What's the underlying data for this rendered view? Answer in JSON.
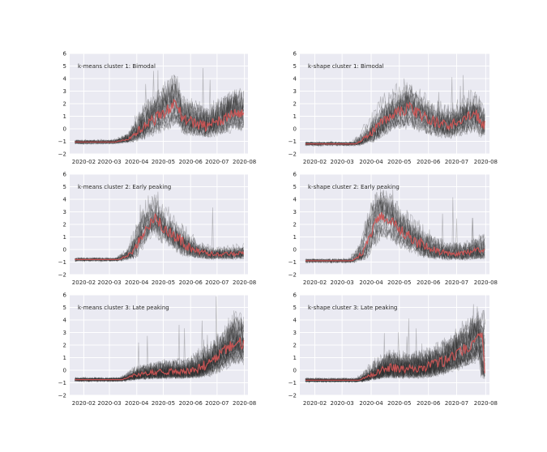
{
  "chart_data": [
    {
      "type": "line",
      "title": "k-means cluster 1: Bimodal",
      "x_ticks": [
        "2020-02",
        "2020-03",
        "2020-04",
        "2020-05",
        "2020-06",
        "2020-07",
        "2020-08"
      ],
      "y_ticks": [
        -2,
        -1,
        0,
        1,
        2,
        3,
        4,
        5,
        6
      ],
      "xlim": [
        "2020-01-16",
        "2020-08-05"
      ],
      "ylim": [
        -2,
        6
      ],
      "x_range": [
        "2020-01-22",
        "2020-07-31"
      ],
      "grid": true,
      "series": [
        {
          "role": "cluster-member",
          "color": "#303030",
          "count": 25
        },
        {
          "role": "cluster-mean",
          "color": "#d05555",
          "profile": [
            [
              0.0,
              -1.05
            ],
            [
              0.24,
              -1.05
            ],
            [
              0.32,
              -0.8
            ],
            [
              0.42,
              0.3
            ],
            [
              0.5,
              1.0
            ],
            [
              0.6,
              2.1
            ],
            [
              0.64,
              0.8
            ],
            [
              0.7,
              0.5
            ],
            [
              0.78,
              0.2
            ],
            [
              0.86,
              0.6
            ],
            [
              0.93,
              1.2
            ],
            [
              1.0,
              1.1
            ]
          ]
        }
      ]
    },
    {
      "type": "line",
      "title": "k-shape cluster 1: Bimodal",
      "x_ticks": [
        "2020-02",
        "2020-03",
        "2020-04",
        "2020-05",
        "2020-06",
        "2020-07",
        "2020-08"
      ],
      "y_ticks": [
        -2,
        -1,
        0,
        1,
        2,
        3,
        4,
        5,
        6
      ],
      "xlim": [
        "2020-01-16",
        "2020-08-05"
      ],
      "ylim": [
        -2,
        6
      ],
      "x_range": [
        "2020-01-22",
        "2020-07-31"
      ],
      "grid": true,
      "series": [
        {
          "role": "cluster-member",
          "color": "#303030",
          "count": 25
        },
        {
          "role": "cluster-mean",
          "color": "#d05555",
          "profile": [
            [
              0.0,
              -1.2
            ],
            [
              0.28,
              -1.2
            ],
            [
              0.36,
              -0.5
            ],
            [
              0.43,
              0.5
            ],
            [
              0.5,
              1.2
            ],
            [
              0.58,
              1.7
            ],
            [
              0.65,
              1.0
            ],
            [
              0.72,
              0.5
            ],
            [
              0.8,
              0.2
            ],
            [
              0.88,
              0.7
            ],
            [
              0.95,
              1.2
            ],
            [
              1.0,
              0.2
            ]
          ]
        }
      ]
    },
    {
      "type": "line",
      "title": "k-means cluster 2: Early peaking",
      "x_ticks": [
        "2020-02",
        "2020-03",
        "2020-04",
        "2020-05",
        "2020-06",
        "2020-07",
        "2020-08"
      ],
      "y_ticks": [
        -2,
        -1,
        0,
        1,
        2,
        3,
        4,
        5,
        6
      ],
      "xlim": [
        "2020-01-16",
        "2020-08-05"
      ],
      "ylim": [
        -2,
        6
      ],
      "x_range": [
        "2020-01-22",
        "2020-07-31"
      ],
      "grid": true,
      "series": [
        {
          "role": "cluster-member",
          "color": "#303030",
          "count": 20
        },
        {
          "role": "cluster-mean",
          "color": "#d05555",
          "profile": [
            [
              0.0,
              -0.8
            ],
            [
              0.26,
              -0.8
            ],
            [
              0.34,
              -0.3
            ],
            [
              0.42,
              1.8
            ],
            [
              0.48,
              2.6
            ],
            [
              0.52,
              1.8
            ],
            [
              0.58,
              1.2
            ],
            [
              0.66,
              0.3
            ],
            [
              0.74,
              -0.2
            ],
            [
              0.85,
              -0.4
            ],
            [
              1.0,
              -0.3
            ]
          ]
        }
      ]
    },
    {
      "type": "line",
      "title": "k-shape cluster 2: Early peaking",
      "x_ticks": [
        "2020-02",
        "2020-03",
        "2020-04",
        "2020-05",
        "2020-06",
        "2020-07",
        "2020-08"
      ],
      "y_ticks": [
        -2,
        -1,
        0,
        1,
        2,
        3,
        4,
        5,
        6
      ],
      "xlim": [
        "2020-01-16",
        "2020-08-05"
      ],
      "ylim": [
        -2,
        6
      ],
      "x_range": [
        "2020-01-22",
        "2020-07-31"
      ],
      "grid": true,
      "series": [
        {
          "role": "cluster-member",
          "color": "#303030",
          "count": 22
        },
        {
          "role": "cluster-mean",
          "color": "#d05555",
          "profile": [
            [
              0.0,
              -0.9
            ],
            [
              0.26,
              -0.9
            ],
            [
              0.32,
              -0.3
            ],
            [
              0.37,
              1.5
            ],
            [
              0.42,
              2.7
            ],
            [
              0.47,
              2.4
            ],
            [
              0.53,
              1.5
            ],
            [
              0.6,
              0.8
            ],
            [
              0.68,
              0.1
            ],
            [
              0.78,
              -0.3
            ],
            [
              0.9,
              -0.3
            ],
            [
              1.0,
              0.0
            ]
          ]
        }
      ]
    },
    {
      "type": "line",
      "title": "k-means cluster 3: Late peaking",
      "x_ticks": [
        "2020-02",
        "2020-03",
        "2020-04",
        "2020-05",
        "2020-06",
        "2020-07",
        "2020-08"
      ],
      "y_ticks": [
        -2,
        -1,
        0,
        1,
        2,
        3,
        4,
        5,
        6
      ],
      "xlim": [
        "2020-01-16",
        "2020-08-05"
      ],
      "ylim": [
        -2,
        6
      ],
      "x_range": [
        "2020-01-22",
        "2020-07-31"
      ],
      "grid": true,
      "series": [
        {
          "role": "cluster-member",
          "color": "#303030",
          "count": 40
        },
        {
          "role": "cluster-mean",
          "color": "#d05555",
          "profile": [
            [
              0.0,
              -0.75
            ],
            [
              0.28,
              -0.75
            ],
            [
              0.36,
              -0.35
            ],
            [
              0.45,
              -0.2
            ],
            [
              0.55,
              -0.1
            ],
            [
              0.65,
              -0.1
            ],
            [
              0.72,
              0.1
            ],
            [
              0.8,
              0.6
            ],
            [
              0.88,
              1.4
            ],
            [
              0.95,
              2.3
            ],
            [
              1.0,
              2.1
            ]
          ]
        }
      ]
    },
    {
      "type": "line",
      "title": "k-shape cluster 3: Late peaking",
      "x_ticks": [
        "2020-02",
        "2020-03",
        "2020-04",
        "2020-05",
        "2020-06",
        "2020-07",
        "2020-08"
      ],
      "y_ticks": [
        -2,
        -1,
        0,
        1,
        2,
        3,
        4,
        5,
        6
      ],
      "xlim": [
        "2020-01-16",
        "2020-08-05"
      ],
      "ylim": [
        -2,
        6
      ],
      "x_range": [
        "2020-01-22",
        "2020-07-31"
      ],
      "grid": true,
      "series": [
        {
          "role": "cluster-member",
          "color": "#303030",
          "count": 40
        },
        {
          "role": "cluster-mean",
          "color": "#d05555",
          "profile": [
            [
              0.0,
              -0.8
            ],
            [
              0.3,
              -0.8
            ],
            [
              0.38,
              -0.3
            ],
            [
              0.46,
              0.2
            ],
            [
              0.55,
              0.1
            ],
            [
              0.64,
              0.2
            ],
            [
              0.72,
              0.4
            ],
            [
              0.8,
              0.9
            ],
            [
              0.88,
              1.6
            ],
            [
              0.95,
              2.4
            ],
            [
              0.985,
              2.6
            ],
            [
              1.0,
              0.0
            ]
          ]
        }
      ]
    }
  ]
}
